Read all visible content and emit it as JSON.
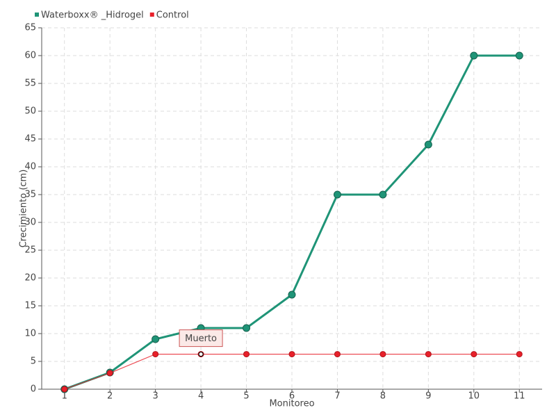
{
  "chart_data": {
    "type": "line",
    "x_label": "Monitoreo",
    "y_label": "Crecimiento (cm)",
    "categories": [
      "1",
      "2",
      "3",
      "4",
      "5",
      "6",
      "7",
      "8",
      "9",
      "10",
      "11"
    ],
    "series": [
      {
        "name": "Waterboxx® _Hidrogel",
        "color": "#1f9477",
        "values": [
          0,
          3,
          9,
          11,
          11,
          17,
          35,
          35,
          44,
          60,
          60
        ]
      },
      {
        "name": "Control",
        "color": "#e8202a",
        "values": [
          0,
          2.9,
          6.3,
          6.3,
          6.3,
          6.3,
          6.3,
          6.3,
          6.3,
          6.3,
          6.3
        ]
      }
    ],
    "annotation": "Muerto",
    "ylim": [
      0,
      65
    ],
    "yticks": [
      0,
      5,
      10,
      15,
      20,
      25,
      30,
      35,
      40,
      45,
      50,
      55,
      60,
      65
    ],
    "grid": true,
    "legend": "top-left"
  }
}
